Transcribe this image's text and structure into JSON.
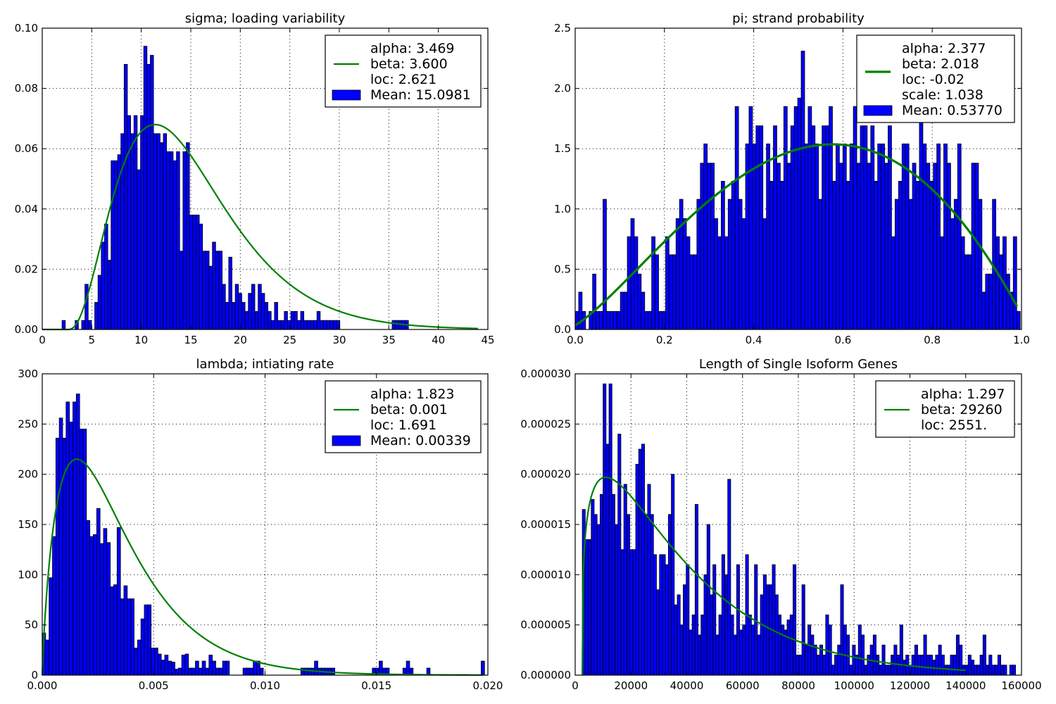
{
  "chart_data": [
    {
      "type": "bar",
      "title": "sigma; loading variability",
      "xlim": [
        0,
        45
      ],
      "ylim": [
        0,
        0.1
      ],
      "xticks": [
        "0",
        "5",
        "10",
        "15",
        "20",
        "25",
        "30",
        "35",
        "40",
        "45"
      ],
      "yticks": [
        "0.00",
        "0.02",
        "0.04",
        "0.06",
        "0.08",
        "0.10"
      ],
      "grid": true,
      "legend_position": "top-right",
      "histogram": {
        "bin_start": 2.0,
        "bin_width": 0.33,
        "values": [
          0.003,
          0,
          0,
          0,
          0.003,
          0,
          0.003,
          0.015,
          0.003,
          0,
          0.009,
          0.018,
          0.029,
          0.035,
          0.023,
          0.056,
          0.056,
          0.058,
          0.065,
          0.088,
          0.071,
          0.065,
          0.071,
          0.053,
          0.071,
          0.094,
          0.088,
          0.091,
          0.065,
          0.065,
          0.062,
          0.065,
          0.059,
          0.059,
          0.056,
          0.059,
          0.026,
          0.059,
          0.062,
          0.038,
          0.038,
          0.038,
          0.035,
          0.026,
          0.026,
          0.021,
          0.029,
          0.026,
          0.026,
          0.015,
          0.009,
          0.024,
          0.009,
          0.015,
          0.012,
          0.009,
          0.006,
          0.012,
          0.015,
          0.006,
          0.015,
          0.012,
          0.009,
          0.006,
          0.003,
          0.009,
          0.003,
          0.003,
          0.006,
          0.003,
          0.006,
          0.006,
          0.003,
          0.006,
          0.003,
          0.003,
          0.003,
          0.003,
          0.006,
          0.003,
          0.003,
          0.003,
          0.003,
          0.003,
          0.003,
          0,
          0,
          0,
          0,
          0,
          0,
          0,
          0,
          0,
          0,
          0,
          0,
          0,
          0,
          0,
          0,
          0.003,
          0.003,
          0.003,
          0.003,
          0.003
        ]
      },
      "fit": {
        "dist": "gamma",
        "params": {
          "alpha": 3.469,
          "beta": 3.6,
          "loc": 2.621
        },
        "x_range": [
          0,
          44
        ],
        "line_width": 2.2
      },
      "legend": [
        {
          "kind": "line",
          "lines": [
            "alpha: 3.469",
            "beta: 3.600",
            "loc: 2.621"
          ]
        },
        {
          "kind": "patch",
          "lines": [
            "Mean: 15.0981"
          ]
        }
      ]
    },
    {
      "type": "bar",
      "title": "pi; strand probability",
      "xlim": [
        0,
        1.0
      ],
      "ylim": [
        0,
        2.5
      ],
      "xticks": [
        "0.0",
        "0.2",
        "0.4",
        "0.6",
        "0.8",
        "1.0"
      ],
      "yticks": [
        "0.0",
        "0.5",
        "1.0",
        "1.5",
        "2.0",
        "2.5"
      ],
      "grid": true,
      "legend_position": "top-right",
      "histogram": {
        "bin_start": 0.0,
        "bin_width": 0.00779,
        "values": [
          0.15,
          0.31,
          0.15,
          0,
          0.15,
          0.46,
          0.15,
          0.15,
          1.08,
          0.15,
          0.15,
          0.15,
          0.15,
          0.31,
          0.31,
          0.77,
          0.92,
          0.77,
          0.46,
          0.31,
          0.15,
          0.15,
          0.77,
          0.62,
          0.15,
          0.15,
          0.77,
          0.62,
          0.62,
          0.92,
          1.08,
          0.92,
          0.77,
          0.62,
          0.62,
          1.08,
          1.38,
          1.54,
          1.38,
          1.38,
          0.92,
          0.77,
          1.23,
          0.77,
          1.08,
          1.23,
          1.85,
          1.08,
          0.92,
          1.54,
          1.85,
          1.54,
          1.69,
          1.69,
          0.92,
          1.54,
          1.23,
          1.69,
          1.38,
          1.23,
          1.85,
          1.38,
          1.69,
          1.85,
          1.92,
          2.31,
          1.54,
          1.85,
          1.69,
          1.54,
          1.08,
          1.69,
          1.69,
          1.85,
          1.23,
          1.54,
          1.38,
          1.54,
          1.23,
          1.54,
          1.85,
          1.38,
          1.69,
          1.69,
          1.38,
          1.69,
          1.23,
          1.54,
          1.54,
          1.38,
          1.69,
          0.77,
          1.08,
          1.23,
          1.54,
          1.54,
          1.08,
          1.38,
          1.23,
          1.85,
          1.54,
          1.38,
          1.23,
          1.38,
          1.54,
          0.77,
          1.54,
          1.38,
          0.92,
          1.08,
          1.54,
          0.77,
          0.62,
          0.62,
          1.38,
          1.38,
          1.08,
          0.31,
          0.46,
          0.46,
          1.08,
          0.77,
          0.62,
          0.77,
          0.46,
          0.31,
          0.77,
          0.15
        ]
      },
      "fit": {
        "dist": "beta",
        "params": {
          "alpha": 2.377,
          "beta": 2.018,
          "loc": -0.02,
          "scale": 1.038
        },
        "x_range": [
          0,
          0.99
        ],
        "line_width": 3.2
      },
      "legend": [
        {
          "kind": "line",
          "lines": [
            "alpha: 2.377",
            "beta: 2.018",
            "loc: -0.02",
            "scale: 1.038"
          ]
        },
        {
          "kind": "patch",
          "lines": [
            "Mean: 0.53770"
          ]
        }
      ]
    },
    {
      "type": "bar",
      "title": "lambda; intiating rate",
      "xlim": [
        0,
        0.02
      ],
      "ylim": [
        0,
        300
      ],
      "xticks": [
        "0.000",
        "0.005",
        "0.010",
        "0.015",
        "0.020"
      ],
      "yticks": [
        "0",
        "50",
        "100",
        "150",
        "200",
        "250",
        "300"
      ],
      "grid": true,
      "legend_position": "top-right",
      "histogram": {
        "bin_start": 0.0,
        "bin_width": 0.0001527,
        "values": [
          42,
          35,
          97,
          138,
          236,
          256,
          236,
          272,
          252,
          272,
          280,
          245,
          245,
          154,
          138,
          140,
          166,
          131,
          146,
          132,
          88,
          90,
          147,
          76,
          89,
          76,
          76,
          27,
          35,
          56,
          70,
          70,
          27,
          27,
          21,
          15,
          20,
          14,
          13,
          6,
          7,
          20,
          21,
          7,
          7,
          14,
          7,
          14,
          7,
          20,
          14,
          7,
          7,
          14,
          14,
          0,
          0,
          0,
          0,
          7,
          7,
          7,
          14,
          14,
          7,
          0,
          0,
          0,
          0,
          0,
          0,
          0,
          0,
          0,
          0,
          0,
          7,
          7,
          7,
          7,
          14,
          7,
          7,
          7,
          7,
          7,
          0,
          0,
          0,
          0,
          0,
          0,
          0,
          0,
          0,
          0,
          0,
          7,
          7,
          14,
          7,
          7,
          0,
          0,
          0,
          0,
          7,
          14,
          7,
          0,
          0,
          0,
          0,
          7,
          0,
          0,
          0,
          0,
          0,
          0,
          0,
          0,
          0,
          0,
          0,
          0,
          0,
          0,
          0,
          14
        ]
      },
      "fit": {
        "dist": "gamma",
        "params": {
          "alpha": 1.823,
          "beta": 0.001,
          "loc": 1.691
        },
        "x_range": [
          0,
          0.0198
        ],
        "line_width": 2.2
      },
      "legend": [
        {
          "kind": "line",
          "lines": [
            "alpha: 1.823",
            "beta: 0.001",
            "loc: 1.691"
          ]
        },
        {
          "kind": "patch",
          "lines": [
            "Mean: 0.00339"
          ]
        }
      ]
    },
    {
      "type": "bar",
      "title": "Length of Single Isoform Genes",
      "xlim": [
        0,
        160000
      ],
      "ylim": [
        0,
        3e-05
      ],
      "xticks": [
        "0",
        "20000",
        "40000",
        "60000",
        "80000",
        "100000",
        "120000",
        "140000",
        "160000"
      ],
      "yticks": [
        "0.000000",
        "0.000005",
        "0.000010",
        "0.000015",
        "0.000020",
        "0.000025",
        "0.000030"
      ],
      "grid": true,
      "legend_position": "top-right",
      "histogram": {
        "bin_start": 2551,
        "bin_width": 1064,
        "values": [
          16.5,
          13.5,
          13.5,
          17.5,
          16,
          15,
          18,
          29,
          23,
          29,
          18,
          15,
          24,
          12.5,
          19,
          16,
          12.5,
          12.5,
          21,
          22.5,
          23,
          16,
          19,
          16,
          12,
          8.5,
          12,
          12,
          11,
          16,
          20,
          7,
          8,
          5,
          9,
          11,
          4.5,
          6,
          17,
          4,
          6,
          10,
          15,
          8,
          11,
          4,
          6,
          12,
          10,
          19.5,
          6,
          4,
          11,
          4.5,
          5,
          12,
          6,
          5,
          11,
          4,
          8,
          10,
          9,
          9,
          11,
          8,
          6,
          5,
          4.5,
          5.5,
          6,
          11,
          2,
          2,
          9,
          3,
          5,
          4,
          3,
          2,
          3,
          2,
          6,
          5,
          1,
          2,
          3,
          9,
          5,
          4,
          1,
          3,
          2,
          5,
          4,
          1,
          2,
          3,
          4,
          2,
          1,
          3,
          1,
          1,
          2,
          3,
          2,
          5,
          1.5,
          2,
          1,
          2,
          3,
          2,
          2,
          4,
          2,
          2,
          1.5,
          2,
          3,
          2,
          1,
          1,
          2,
          2,
          4,
          3,
          1,
          1,
          2,
          1.5,
          1,
          1,
          2,
          4,
          1,
          2,
          1,
          1,
          2,
          1,
          1,
          0,
          1,
          1
        ]
      },
      "fit": {
        "dist": "gamma",
        "params": {
          "alpha": 1.297,
          "beta": 29260,
          "loc": 2551
        },
        "x_range": [
          2551,
          140000
        ],
        "line_width": 2.2
      },
      "legend": [
        {
          "kind": "line",
          "lines": [
            "alpha: 1.297",
            "beta: 29260",
            "loc: 2551."
          ]
        }
      ]
    }
  ]
}
